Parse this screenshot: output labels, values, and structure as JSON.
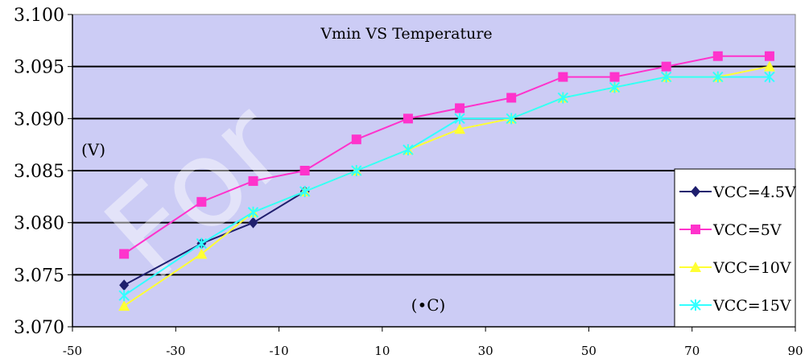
{
  "chart_data": {
    "type": "line",
    "title": "Vmin VS Temperature",
    "ylabel": "(V)",
    "xlabel": "(•C)",
    "x": [
      -40,
      -25,
      -15,
      -5,
      5,
      15,
      25,
      35,
      45,
      55,
      65,
      75,
      85
    ],
    "xlim": [
      -50,
      90
    ],
    "ylim": [
      3.07,
      3.1
    ],
    "x_ticks": [
      -50,
      -30,
      -10,
      10,
      30,
      50,
      70,
      90
    ],
    "x_tick_labels": [
      "-50",
      "-30",
      "-10",
      "10",
      "30",
      "50",
      "70",
      "90"
    ],
    "y_ticks": [
      3.07,
      3.075,
      3.08,
      3.085,
      3.09,
      3.095,
      3.1
    ],
    "y_tick_labels": [
      "3.070",
      "3.075",
      "3.080",
      "3.085",
      "3.090",
      "3.095",
      "3.100"
    ],
    "grid": true,
    "legend_position": "right",
    "background_color": "#ccccf5",
    "series": [
      {
        "name": "VCC=4.5V",
        "color": "#1f1f6e",
        "marker": "diamond",
        "x": [
          -40,
          -25,
          -15,
          -5
        ],
        "values": [
          3.074,
          3.078,
          3.08,
          3.083
        ]
      },
      {
        "name": "VCC=5V",
        "color": "#ff33cc",
        "marker": "square",
        "x": [
          -40,
          -25,
          -15,
          -5,
          5,
          15,
          25,
          35,
          45,
          55,
          65,
          75,
          85
        ],
        "values": [
          3.077,
          3.082,
          3.084,
          3.085,
          3.088,
          3.09,
          3.091,
          3.092,
          3.094,
          3.094,
          3.095,
          3.096,
          3.096
        ]
      },
      {
        "name": "VCC=10V",
        "color": "#ffff33",
        "marker": "triangle",
        "x": [
          -40,
          -25,
          -15,
          -5,
          5,
          15,
          25,
          35,
          45,
          55,
          65,
          75,
          85
        ],
        "values": [
          3.072,
          3.077,
          3.081,
          3.083,
          3.085,
          3.087,
          3.089,
          3.09,
          3.092,
          3.093,
          3.094,
          3.094,
          3.095
        ]
      },
      {
        "name": "VCC=15V",
        "color": "#33ffff",
        "marker": "cross",
        "x": [
          -40,
          -25,
          -15,
          -5,
          5,
          15,
          25,
          35,
          45,
          55,
          65,
          75,
          85
        ],
        "values": [
          3.073,
          3.078,
          3.081,
          3.083,
          3.085,
          3.087,
          3.09,
          3.09,
          3.092,
          3.093,
          3.094,
          3.094,
          3.094
        ]
      }
    ]
  },
  "watermark": "For"
}
